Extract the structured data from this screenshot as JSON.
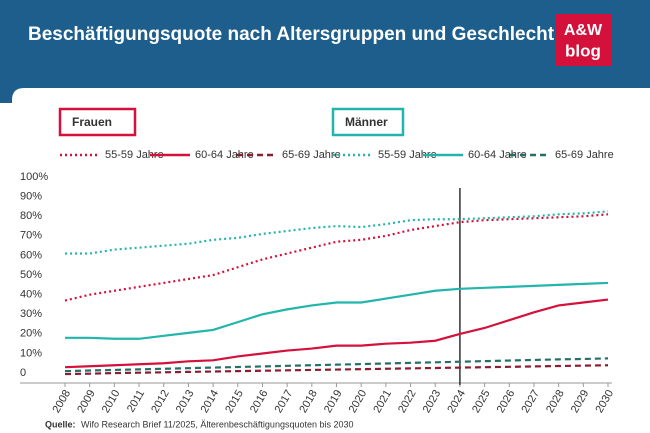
{
  "chart_data": {
    "type": "line",
    "title": "Beschäftigungsquote nach Altersgruppen und Geschlecht",
    "logo": {
      "top": "A&W",
      "bottom": "blog"
    },
    "groups": [
      "Frauen",
      "Männer"
    ],
    "x": [
      2008,
      2009,
      2010,
      2011,
      2012,
      2013,
      2014,
      2015,
      2016,
      2017,
      2018,
      2019,
      2020,
      2021,
      2022,
      2023,
      2024,
      2025,
      2026,
      2027,
      2028,
      2029,
      2030
    ],
    "xlim": [
      2008,
      2030
    ],
    "ylim": [
      0,
      100
    ],
    "yticks": [
      0,
      {
        "value": 10,
        "label": "10%"
      },
      {
        "value": 20,
        "label": "20%"
      },
      {
        "value": 30,
        "label": "30%"
      },
      {
        "value": 40,
        "label": "40%"
      },
      {
        "value": 50,
        "label": "50%"
      },
      {
        "value": 60,
        "label": "60%"
      },
      {
        "value": 70,
        "label": "70%"
      },
      {
        "value": 80,
        "label": "80%"
      },
      {
        "value": 90,
        "label": "90%"
      },
      {
        "value": 100,
        "label": "100%"
      }
    ],
    "marker_x": 2024,
    "grid": false,
    "series": [
      {
        "name": "55-59 Jahre",
        "group": 0,
        "color": "#d4113b",
        "dash": "dotted",
        "values": [
          39,
          42,
          44,
          46,
          48,
          50,
          52,
          56,
          60,
          63,
          66,
          69,
          70,
          72,
          75,
          77,
          79,
          80,
          80.5,
          81,
          81.5,
          82,
          83
        ]
      },
      {
        "name": "60-64 Jahre",
        "group": 0,
        "color": "#d4113b",
        "dash": "solid",
        "values": [
          5,
          5.5,
          6,
          6.5,
          7,
          8,
          8.5,
          10.5,
          12,
          13.5,
          14.5,
          16,
          16,
          17,
          17.5,
          18.5,
          22,
          25,
          29,
          33,
          36.5,
          38,
          39.5
        ]
      },
      {
        "name": "65-69 Jahre",
        "group": 0,
        "color": "#8c1c30",
        "dash": "dashed",
        "values": [
          1.5,
          1.7,
          2,
          2.2,
          2.4,
          2.6,
          2.8,
          3,
          3.2,
          3.4,
          3.6,
          3.8,
          4,
          4.2,
          4.4,
          4.6,
          4.8,
          5,
          5.2,
          5.4,
          5.6,
          5.8,
          6
        ]
      },
      {
        "name": "55-59 Jahre",
        "group": 1,
        "color": "#22b5ab",
        "dash": "dotted",
        "values": [
          63,
          63,
          65,
          66,
          67,
          68,
          70,
          71,
          73,
          74.5,
          76,
          77,
          76.5,
          78,
          80,
          80.5,
          80.5,
          81,
          81.5,
          82,
          83,
          83.5,
          84.5
        ]
      },
      {
        "name": "60-64 Jahre",
        "group": 1,
        "color": "#22b5ab",
        "dash": "solid",
        "values": [
          20,
          20,
          19.5,
          19.5,
          21,
          22.5,
          24,
          28,
          32,
          34.5,
          36.5,
          38,
          38,
          40,
          42,
          44,
          45,
          45.5,
          46,
          46.5,
          47,
          47.5,
          48
        ]
      },
      {
        "name": "65-69 Jahre",
        "group": 1,
        "color": "#246f66",
        "dash": "dashed",
        "values": [
          3,
          3.3,
          3.6,
          3.9,
          4.2,
          4.5,
          4.8,
          5.1,
          5.4,
          5.7,
          6,
          6.3,
          6.6,
          6.9,
          7.2,
          7.5,
          7.8,
          8.1,
          8.4,
          8.7,
          9,
          9.2,
          9.5
        ]
      }
    ],
    "source": {
      "label": "Quelle:",
      "text": "Wifo Research Brief 11/2025, Älterenbeschäftigungsquoten bis 2030"
    }
  }
}
